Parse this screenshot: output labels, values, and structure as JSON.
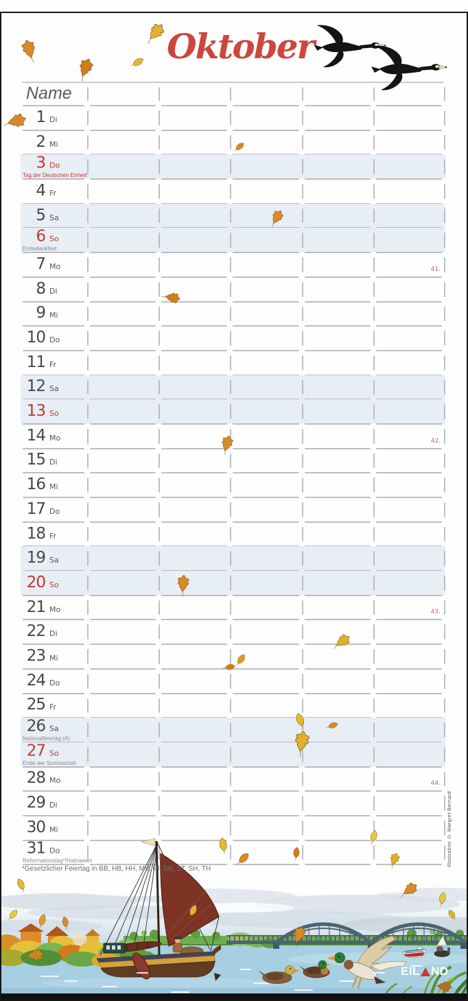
{
  "title": "Oktober",
  "name_header": "Name",
  "columns": 5,
  "days": [
    {
      "day": "1",
      "wd": "Di"
    },
    {
      "day": "2",
      "wd": "Mi"
    },
    {
      "day": "3",
      "wd": "Do",
      "hol": "Tag der Deutschen Einheit",
      "red": true,
      "subRed": true,
      "hl": true
    },
    {
      "day": "4",
      "wd": "Fr"
    },
    {
      "day": "5",
      "wd": "Sa",
      "hl": true
    },
    {
      "day": "6",
      "wd": "So",
      "hol": "Erntedankfest",
      "red": true,
      "hl": true
    },
    {
      "day": "7",
      "wd": "Mo",
      "week": "41."
    },
    {
      "day": "8",
      "wd": "Di"
    },
    {
      "day": "9",
      "wd": "Mi"
    },
    {
      "day": "10",
      "wd": "Do"
    },
    {
      "day": "11",
      "wd": "Fr"
    },
    {
      "day": "12",
      "wd": "Sa",
      "hl": true
    },
    {
      "day": "13",
      "wd": "So",
      "red": true,
      "hl": true
    },
    {
      "day": "14",
      "wd": "Mo",
      "week": "42."
    },
    {
      "day": "15",
      "wd": "Di"
    },
    {
      "day": "16",
      "wd": "Mi"
    },
    {
      "day": "17",
      "wd": "Do"
    },
    {
      "day": "18",
      "wd": "Fr"
    },
    {
      "day": "19",
      "wd": "Sa",
      "hl": true
    },
    {
      "day": "20",
      "wd": "So",
      "red": true,
      "hl": true
    },
    {
      "day": "21",
      "wd": "Mo",
      "week": "43."
    },
    {
      "day": "22",
      "wd": "Di"
    },
    {
      "day": "23",
      "wd": "Mi"
    },
    {
      "day": "24",
      "wd": "Do"
    },
    {
      "day": "25",
      "wd": "Fr"
    },
    {
      "day": "26",
      "wd": "Sa",
      "hol": "Nationalfeiertag (A)",
      "hl": true
    },
    {
      "day": "27",
      "wd": "So",
      "hol": "Ende der Sommerzeit",
      "red": true,
      "hl": true
    },
    {
      "day": "28",
      "wd": "Mo",
      "week": "44."
    },
    {
      "day": "29",
      "wd": "Di"
    },
    {
      "day": "30",
      "wd": "Mi"
    },
    {
      "day": "31",
      "wd": "Do",
      "hol": "Reformationstag*/Halloween"
    }
  ],
  "footnote": "*Gesetzlicher Feiertag in BB, HB, HH, MV, NI, SN, ST, SH, TH",
  "credit": "Illustration © Margret Bernard",
  "brand": {
    "part1": "EIL",
    "part2": "ND"
  },
  "icons": {
    "geese": "goose-icon",
    "leaf": "leaf-icon"
  },
  "colors": {
    "title_red": "#cc463d",
    "day_red": "#c03a2e",
    "highlight_blue": "#e7eef6",
    "week_number_red": "#d0645c",
    "logo_triangle_red": "#d5352c",
    "water_blue": "#a7cfe2",
    "sail_maroon": "#7d3425"
  }
}
